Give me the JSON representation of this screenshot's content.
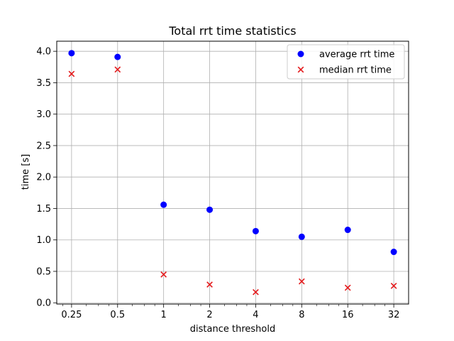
{
  "chart_data": {
    "type": "scatter",
    "title": "Total rrt time statistics",
    "xlabel": "distance threshold",
    "ylabel": "time [s]",
    "xscale": "log2",
    "x_tick_labels": [
      "0.25",
      "0.5",
      "1",
      "2",
      "4",
      "8",
      "16",
      "32"
    ],
    "x": [
      0.25,
      0.5,
      1,
      2,
      4,
      8,
      16,
      32
    ],
    "xlim": [
      0.2,
      40
    ],
    "ylim": [
      -0.02,
      4.16
    ],
    "y_ticks": [
      0.0,
      0.5,
      1.0,
      1.5,
      2.0,
      2.5,
      3.0,
      3.5,
      4.0
    ],
    "grid": true,
    "legend_position": "top-right",
    "series": [
      {
        "name": "average rrt time",
        "marker": "circle",
        "color": "#0000ff",
        "values": [
          3.97,
          3.91,
          1.56,
          1.48,
          1.14,
          1.05,
          1.16,
          0.81
        ]
      },
      {
        "name": "median rrt time",
        "marker": "x",
        "color": "#e41a1c",
        "values": [
          3.64,
          3.71,
          0.45,
          0.29,
          0.17,
          0.34,
          0.24,
          0.27
        ]
      }
    ]
  }
}
